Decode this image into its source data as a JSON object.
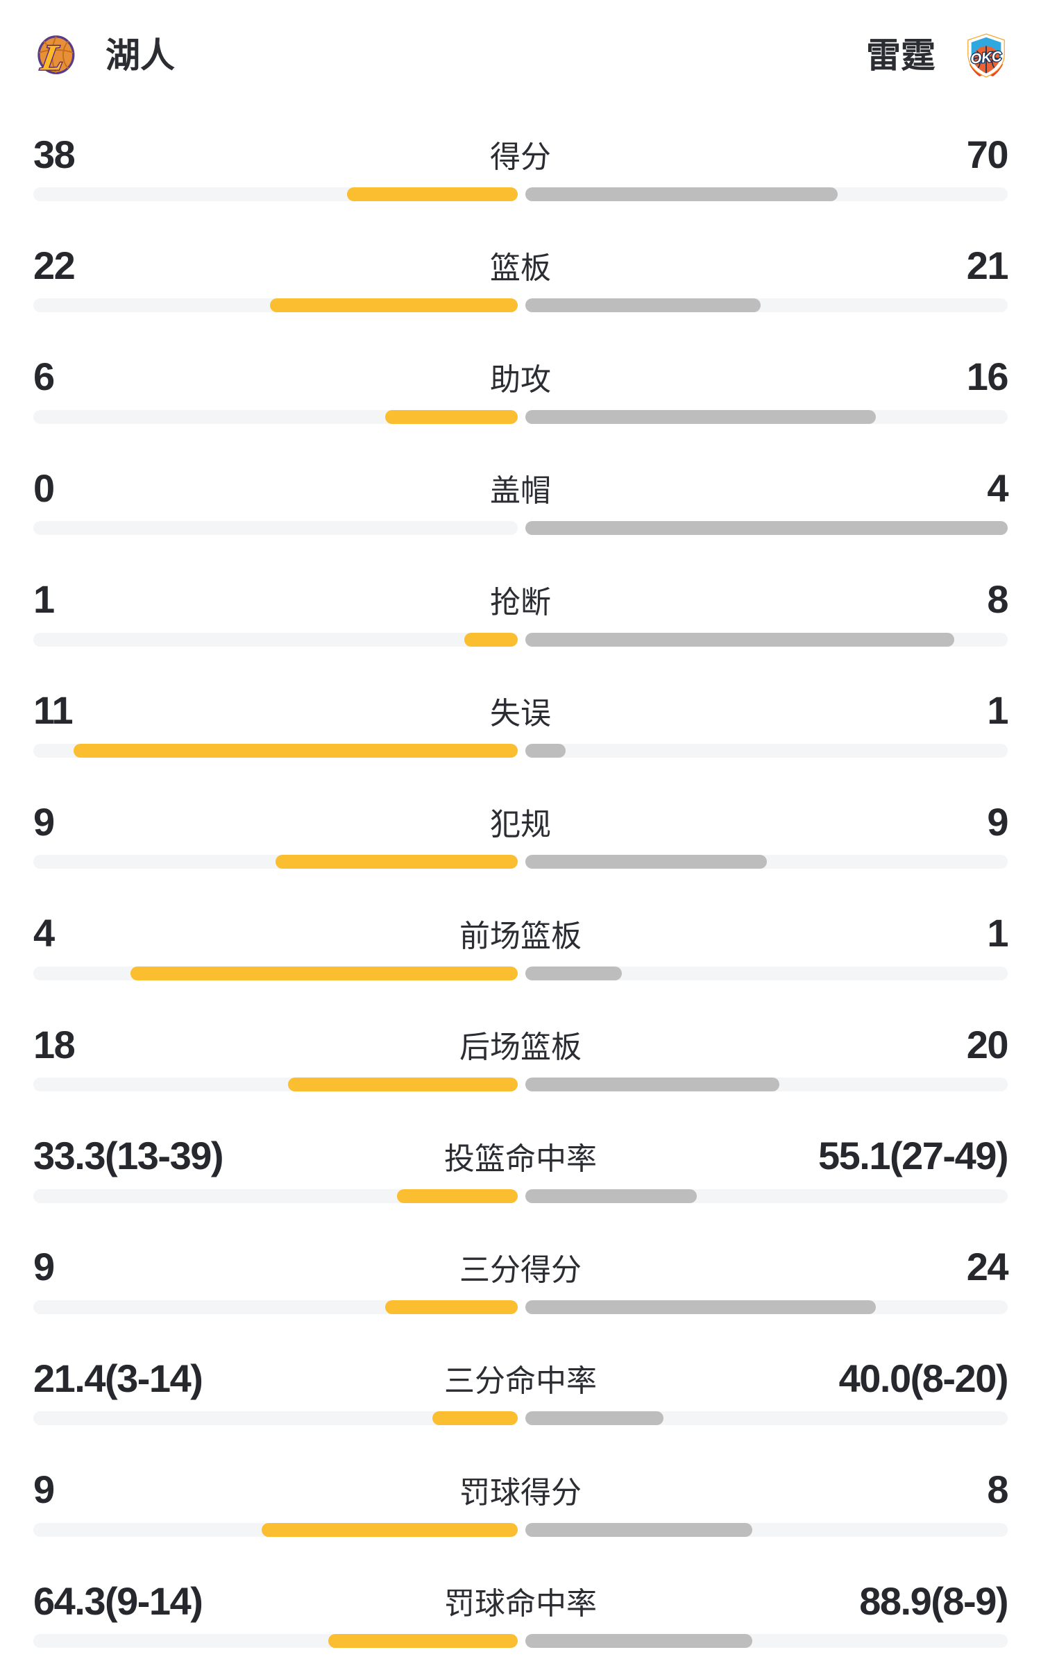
{
  "header": {
    "home_name": "湖人",
    "away_name": "雷霆",
    "home_logo": "lakers-crest",
    "away_logo": "okc-crest"
  },
  "colors": {
    "home_fill": "#FBBE30",
    "away_fill": "#BDBDBD",
    "track": "#F4F5F7",
    "text": "#26282D"
  },
  "chart_data": {
    "type": "bar",
    "layout": "mirrored horizontal comparison bars, home fills right-aligned toward center, away fills left-aligned from center",
    "stats": [
      {
        "label": "得分",
        "home": "38",
        "away": "70",
        "home_fill_pct": 35.2,
        "away_fill_pct": 64.8
      },
      {
        "label": "篮板",
        "home": "22",
        "away": "21",
        "home_fill_pct": 51.2,
        "away_fill_pct": 48.8
      },
      {
        "label": "助攻",
        "home": "6",
        "away": "16",
        "home_fill_pct": 27.3,
        "away_fill_pct": 72.7
      },
      {
        "label": "盖帽",
        "home": "0",
        "away": "4",
        "home_fill_pct": 0,
        "away_fill_pct": 100
      },
      {
        "label": "抢断",
        "home": "1",
        "away": "8",
        "home_fill_pct": 11.1,
        "away_fill_pct": 88.9
      },
      {
        "label": "失误",
        "home": "11",
        "away": "1",
        "home_fill_pct": 91.7,
        "away_fill_pct": 8.3
      },
      {
        "label": "犯规",
        "home": "9",
        "away": "9",
        "home_fill_pct": 50,
        "away_fill_pct": 50
      },
      {
        "label": "前场篮板",
        "home": "4",
        "away": "1",
        "home_fill_pct": 80,
        "away_fill_pct": 20
      },
      {
        "label": "后场篮板",
        "home": "18",
        "away": "20",
        "home_fill_pct": 47.4,
        "away_fill_pct": 52.6
      },
      {
        "label": "投篮命中率",
        "home": "33.3(13-39)",
        "away": "55.1(27-49)",
        "home_fill_pct": 25.0,
        "away_fill_pct": 35.5
      },
      {
        "label": "三分得分",
        "home": "9",
        "away": "24",
        "home_fill_pct": 27.3,
        "away_fill_pct": 72.7
      },
      {
        "label": "三分命中率",
        "home": "21.4(3-14)",
        "away": "40.0(8-20)",
        "home_fill_pct": 17.6,
        "away_fill_pct": 28.6
      },
      {
        "label": "罚球得分",
        "home": "9",
        "away": "8",
        "home_fill_pct": 52.9,
        "away_fill_pct": 47.1
      },
      {
        "label": "罚球命中率",
        "home": "64.3(9-14)",
        "away": "88.9(8-9)",
        "home_fill_pct": 39.1,
        "away_fill_pct": 47.1
      }
    ]
  }
}
